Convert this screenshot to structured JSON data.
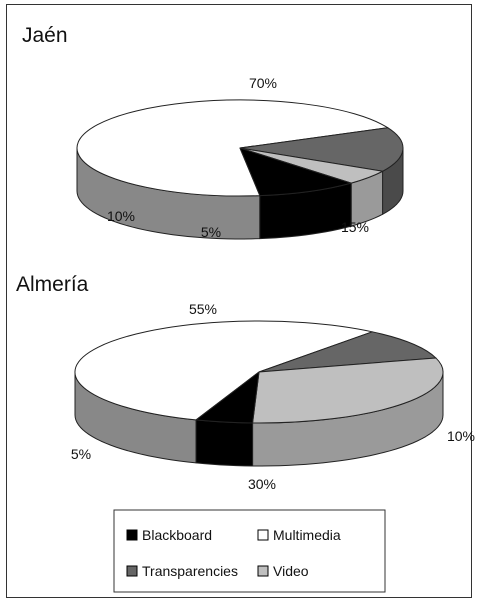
{
  "chart_data": [
    {
      "type": "pie",
      "title": "Jaén",
      "slices": [
        {
          "label": "Multimedia",
          "value": 70,
          "text": "70%"
        },
        {
          "label": "Transparencies",
          "value": 15,
          "text": "15%"
        },
        {
          "label": "Video",
          "value": 5,
          "text": "5%"
        },
        {
          "label": "Blackboard",
          "value": 10,
          "text": "10%"
        }
      ]
    },
    {
      "type": "pie",
      "title": "Almería",
      "slices": [
        {
          "label": "Multimedia",
          "value": 55,
          "text": "55%"
        },
        {
          "label": "Transparencies",
          "value": 10,
          "text": "10%"
        },
        {
          "label": "Video",
          "value": 30,
          "text": "30%"
        },
        {
          "label": "Blackboard",
          "value": 5,
          "text": "5%"
        }
      ]
    }
  ],
  "legend": {
    "position": "bottom",
    "items": [
      {
        "label": "Blackboard",
        "color": "#000000"
      },
      {
        "label": "Multimedia",
        "color": "#ffffff"
      },
      {
        "label": "Transparencies",
        "color": "#666666"
      },
      {
        "label": "Video",
        "color": "#bfbfbf"
      }
    ]
  }
}
